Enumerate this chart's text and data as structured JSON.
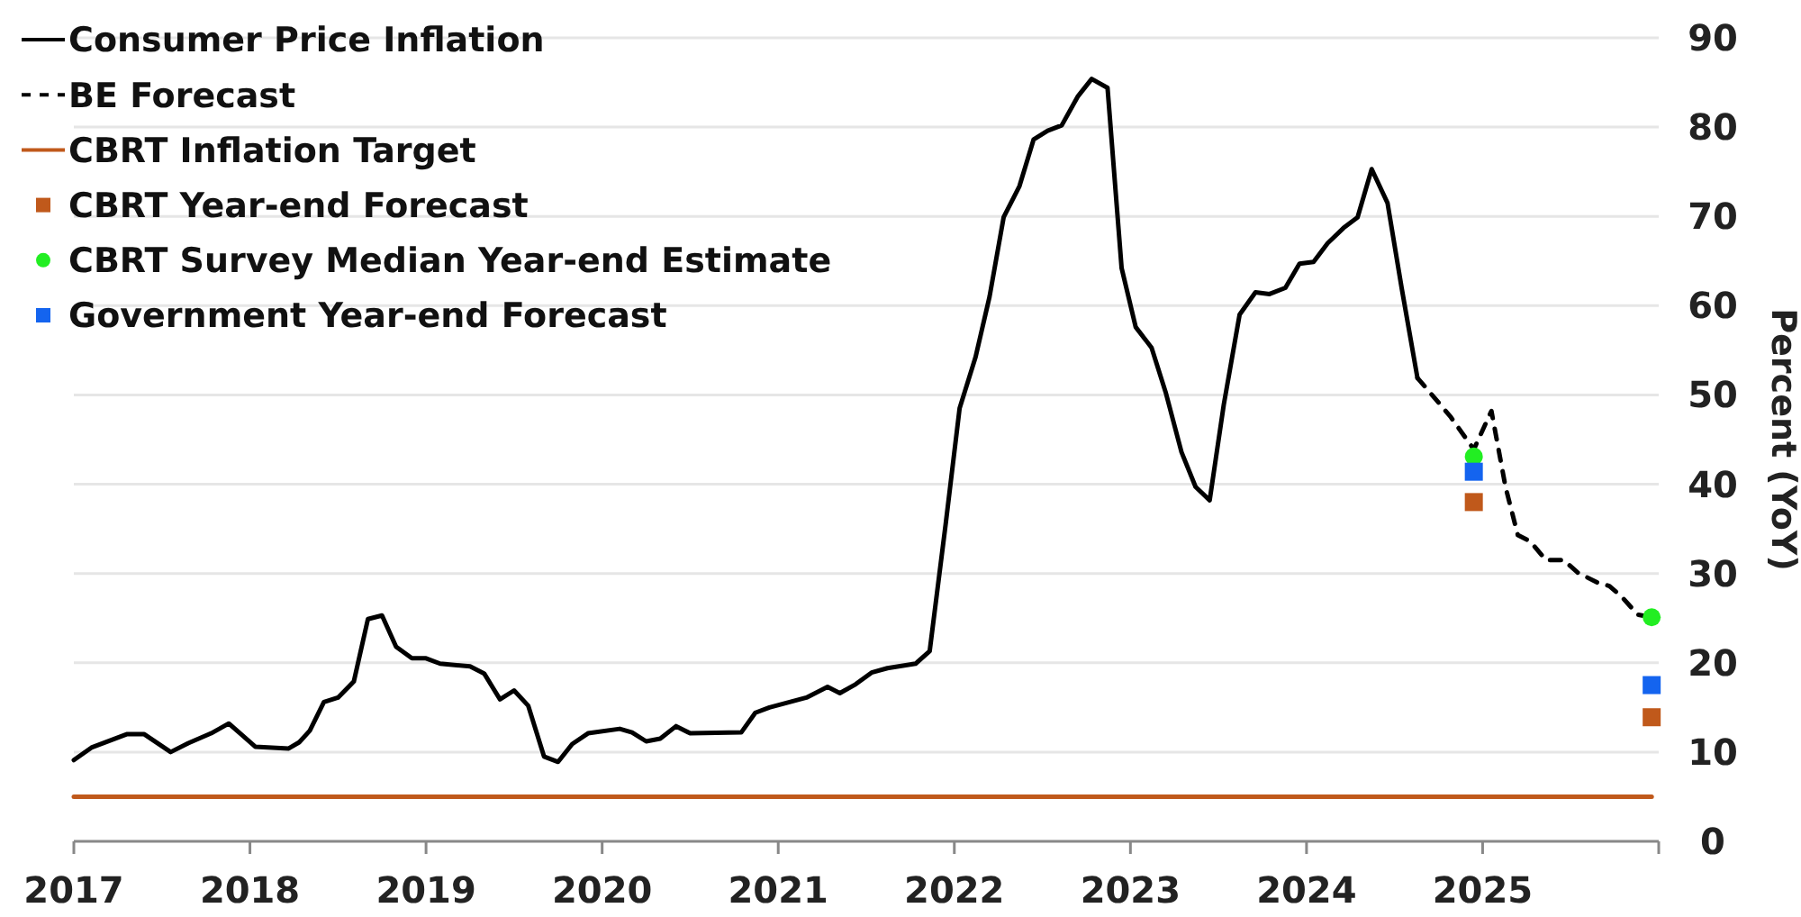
{
  "chart_data": {
    "type": "line",
    "ylabel": "Percent (YoY)",
    "xlim": [
      2017,
      2026
    ],
    "xticks": [
      2017,
      2018,
      2019,
      2020,
      2021,
      2022,
      2023,
      2024,
      2025,
      {
        "value": 2026,
        "label": null
      }
    ],
    "ylim": [
      0,
      90
    ],
    "yticks": [
      0,
      10,
      20,
      30,
      40,
      50,
      60,
      70,
      80,
      90
    ],
    "grid": "y",
    "legend": "top left",
    "series": [
      {
        "name": "Consumer Price Inflation",
        "type": "line",
        "color": "#000000",
        "line_style": "solid",
        "x": [
          2017.0,
          2017.1,
          2017.3,
          2017.4,
          2017.55,
          2017.65,
          2017.78,
          2017.88,
          2017.95,
          2018.03,
          2018.22,
          2018.28,
          2018.34,
          2018.42,
          2018.5,
          2018.59,
          2018.67,
          2018.75,
          2018.83,
          2018.92,
          2019.0,
          2019.08,
          2019.25,
          2019.33,
          2019.42,
          2019.5,
          2019.58,
          2019.67,
          2019.75,
          2019.83,
          2019.92,
          2020.1,
          2020.17,
          2020.25,
          2020.33,
          2020.42,
          2020.5,
          2020.79,
          2020.87,
          2020.95,
          2021.16,
          2021.28,
          2021.35,
          2021.44,
          2021.53,
          2021.62,
          2021.78,
          2021.86,
          2021.95,
          2022.03,
          2022.12,
          2022.2,
          2022.28,
          2022.37,
          2022.45,
          2022.53,
          2022.61,
          2022.7,
          2022.78,
          2022.87,
          2022.95,
          2023.03,
          2023.12,
          2023.2,
          2023.29,
          2023.37,
          2023.45,
          2023.53,
          2023.62,
          2023.71,
          2023.79,
          2023.88,
          2023.96,
          2024.04,
          2024.12,
          2024.21,
          2024.29,
          2024.37,
          2024.46,
          2024.54,
          2024.63
        ],
        "values": [
          9.1,
          10.5,
          12.0,
          12.0,
          10.0,
          11.0,
          12.1,
          13.2,
          12.0,
          10.6,
          10.4,
          11.1,
          12.4,
          15.6,
          16.1,
          17.9,
          24.9,
          25.3,
          21.8,
          20.5,
          20.5,
          19.9,
          19.6,
          18.8,
          15.9,
          16.9,
          15.2,
          9.5,
          8.9,
          10.9,
          12.1,
          12.6,
          12.2,
          11.2,
          11.5,
          12.9,
          12.1,
          12.2,
          14.4,
          15.0,
          16.1,
          17.3,
          16.6,
          17.6,
          18.9,
          19.4,
          19.9,
          21.3,
          35.4,
          48.5,
          54.2,
          61.0,
          69.9,
          73.4,
          78.6,
          79.6,
          80.2,
          83.4,
          85.4,
          84.4,
          64.2,
          57.6,
          55.3,
          50.3,
          43.6,
          39.7,
          38.2,
          48.9,
          59.0,
          61.5,
          61.3,
          62.0,
          64.7,
          64.9,
          67.0,
          68.7,
          69.9,
          75.3,
          71.5,
          62.0,
          51.9
        ]
      },
      {
        "name": "BE Forecast",
        "type": "line",
        "color": "#000000",
        "line_style": "dashed",
        "x": [
          2024.63,
          2024.73,
          2024.82,
          2024.95,
          2025.05,
          2025.13,
          2025.2,
          2025.27,
          2025.36,
          2025.46,
          2025.54,
          2025.65,
          2025.72,
          2025.79,
          2025.88,
          2025.96
        ],
        "values": [
          51.9,
          49.6,
          47.5,
          43.9,
          48.2,
          39.7,
          34.3,
          33.6,
          31.5,
          31.5,
          30.1,
          29.0,
          28.6,
          27.4,
          25.4,
          25.1
        ]
      },
      {
        "name": "CBRT Inflation Target",
        "type": "line",
        "color": "#c0591b",
        "line_style": "solid",
        "x": [
          2017.0,
          2025.96
        ],
        "values": [
          5,
          5
        ]
      },
      {
        "name": "CBRT Year-end Forecast",
        "type": "scatter",
        "marker": "square",
        "color": "#c0591b",
        "x": [
          2024.95,
          2025.96
        ],
        "values": [
          38.0,
          13.9
        ]
      },
      {
        "name": "CBRT Survey Median Year-end Estimate",
        "type": "scatter",
        "marker": "circle",
        "color": "#22ee22",
        "x": [
          2024.95,
          2025.96
        ],
        "values": [
          43.1,
          25.1
        ]
      },
      {
        "name": "Government Year-end Forecast",
        "type": "scatter",
        "marker": "square",
        "color": "#1464ef",
        "x": [
          2024.95,
          2025.96
        ],
        "values": [
          41.4,
          17.5
        ]
      }
    ]
  }
}
